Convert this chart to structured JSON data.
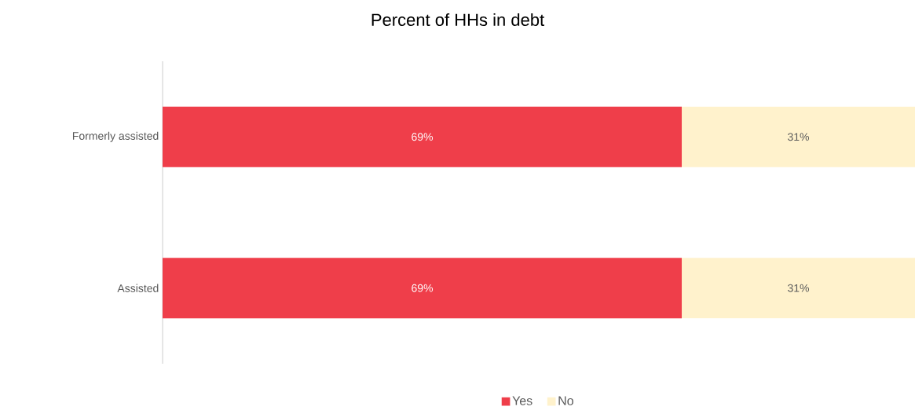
{
  "chart_data": {
    "type": "bar",
    "orientation": "horizontal",
    "stacked": true,
    "title": "Percent of HHs in debt",
    "categories": [
      "Formerly assisted",
      "Assisted"
    ],
    "series": [
      {
        "name": "Yes",
        "color": "#ef3e4a",
        "values": [
          69,
          69
        ],
        "value_labels": [
          "69%",
          "69%"
        ]
      },
      {
        "name": "No",
        "color": "#fff2cc",
        "values": [
          31,
          31
        ],
        "value_labels": [
          "31%",
          "31%"
        ]
      }
    ],
    "legend": "bottom",
    "tick_labels": "y"
  }
}
